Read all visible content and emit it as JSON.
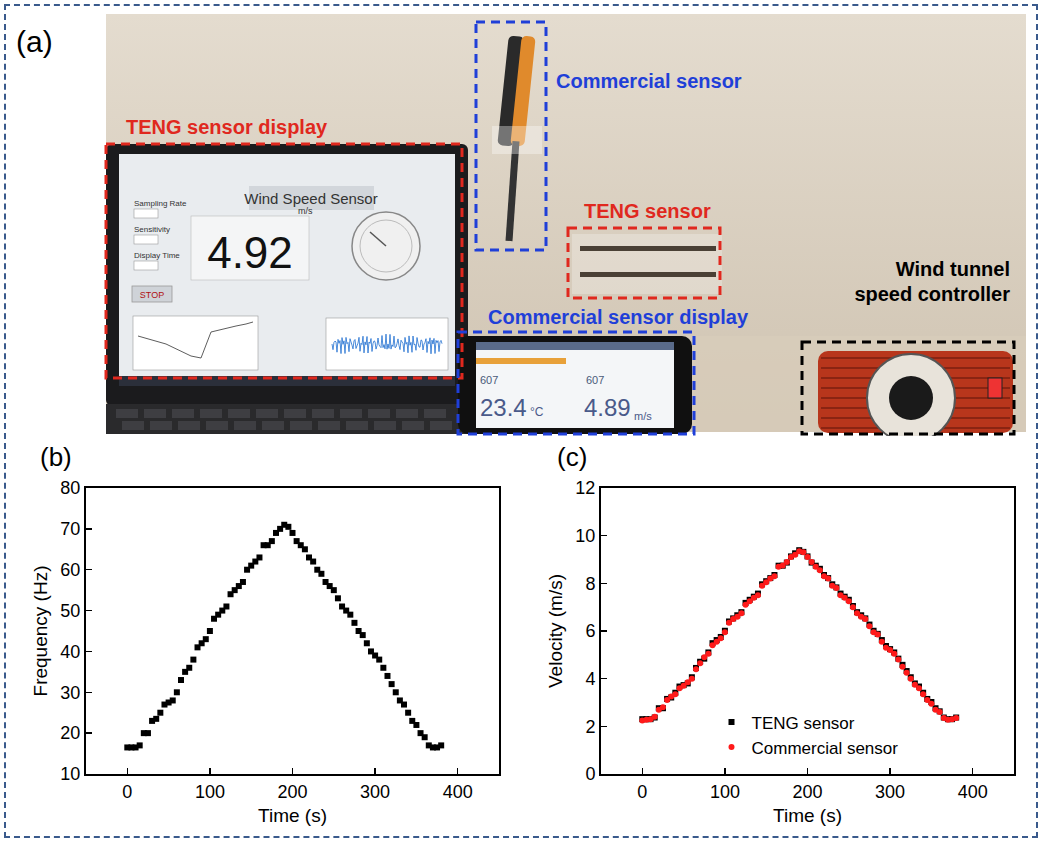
{
  "panel_a": {
    "panel_label": "(a)",
    "boxes": [
      {
        "label": "TENG sensor display",
        "color": "#e0281e"
      },
      {
        "label": "Commercial sensor",
        "color": "#1f3fd8"
      },
      {
        "label": "TENG sensor",
        "color": "#e0281e"
      },
      {
        "label": "Commercial sensor display",
        "color": "#1f3fd8"
      },
      {
        "label": "Wind tunnel speed controller",
        "color": "#000000"
      }
    ],
    "laptop_screen": {
      "title": "Wind Speed Sensor",
      "fields": [
        "Sampling Rate",
        "Sensitivity",
        "Display Time"
      ],
      "reading": 4.92,
      "unit": "m/s",
      "button": "STOP"
    },
    "phone_screen": {
      "counts": [
        607,
        607
      ],
      "temperature": 23.4,
      "temperature_unit": "°C",
      "speed": 4.89,
      "speed_unit": "m/s"
    }
  },
  "chart_data": [
    {
      "type": "scatter",
      "panel_label": "(b)",
      "x_label": "Time (s)",
      "y_label": "Frequency (Hz)",
      "x": [
        0,
        5,
        10,
        15,
        20,
        25,
        30,
        35,
        40,
        45,
        50,
        55,
        60,
        65,
        70,
        75,
        80,
        85,
        90,
        95,
        100,
        105,
        110,
        115,
        120,
        125,
        130,
        135,
        140,
        145,
        150,
        155,
        160,
        165,
        170,
        175,
        180,
        185,
        190,
        195,
        200,
        205,
        210,
        215,
        220,
        225,
        230,
        235,
        240,
        245,
        250,
        255,
        260,
        265,
        270,
        275,
        280,
        285,
        290,
        295,
        300,
        305,
        310,
        315,
        320,
        325,
        330,
        335,
        340,
        345,
        350,
        355,
        360,
        365,
        370,
        375,
        380
      ],
      "values": [
        16.5,
        16.5,
        16.5,
        17,
        20,
        20,
        23,
        23.5,
        25,
        27,
        27.5,
        28,
        30,
        33,
        35,
        36,
        38,
        41,
        42,
        43,
        45,
        48,
        49,
        50,
        51,
        54,
        55,
        56,
        57,
        60,
        61,
        62,
        63,
        66,
        66,
        67,
        69,
        70,
        71,
        70.5,
        69,
        67,
        66,
        65,
        63,
        62,
        60,
        59,
        57,
        56,
        55,
        53,
        51,
        50,
        49,
        47,
        45,
        44,
        42,
        40,
        39,
        38,
        36,
        34,
        32,
        30,
        28,
        27,
        25,
        23,
        22,
        20,
        19,
        17,
        16.5,
        16.5,
        17
      ],
      "color": "#000000",
      "marker": "square",
      "xlim": [
        -50,
        450
      ],
      "xticks": [
        0,
        100,
        200,
        300,
        400
      ],
      "ylim": [
        10,
        80
      ],
      "yticks": [
        10,
        20,
        30,
        40,
        50,
        60,
        70,
        80
      ],
      "grid": false
    },
    {
      "type": "scatter",
      "panel_label": "(c)",
      "x_label": "Time (s)",
      "y_label": "Velocity (m/s)",
      "x": [
        0,
        5,
        10,
        15,
        20,
        25,
        30,
        35,
        40,
        45,
        50,
        55,
        60,
        65,
        70,
        75,
        80,
        85,
        90,
        95,
        100,
        105,
        110,
        115,
        120,
        125,
        130,
        135,
        140,
        145,
        150,
        155,
        160,
        165,
        170,
        175,
        180,
        185,
        190,
        195,
        200,
        205,
        210,
        215,
        220,
        225,
        230,
        235,
        240,
        245,
        250,
        255,
        260,
        265,
        270,
        275,
        280,
        285,
        290,
        295,
        300,
        305,
        310,
        315,
        320,
        325,
        330,
        335,
        340,
        345,
        350,
        355,
        360,
        365,
        370,
        375,
        380
      ],
      "series": [
        {
          "name": "TENG sensor",
          "color": "#000000",
          "marker": "square",
          "values": [
            2.3,
            2.3,
            2.3,
            2.37,
            2.76,
            2.76,
            3.15,
            3.21,
            3.41,
            3.67,
            3.73,
            3.8,
            4.06,
            4.45,
            4.71,
            4.84,
            5.1,
            5.49,
            5.62,
            5.75,
            6.01,
            6.4,
            6.53,
            6.66,
            6.79,
            7.18,
            7.31,
            7.44,
            7.57,
            7.96,
            8.09,
            8.22,
            8.35,
            8.74,
            8.74,
            8.87,
            9.13,
            9.26,
            9.39,
            9.32,
            9.13,
            8.87,
            8.74,
            8.61,
            8.35,
            8.22,
            7.96,
            7.83,
            7.57,
            7.44,
            7.31,
            7.05,
            6.79,
            6.66,
            6.53,
            6.27,
            6.01,
            5.88,
            5.62,
            5.37,
            5.24,
            5.1,
            4.84,
            4.58,
            4.32,
            4.06,
            3.8,
            3.67,
            3.41,
            3.15,
            3.02,
            2.76,
            2.63,
            2.37,
            2.3,
            2.3,
            2.37
          ]
        },
        {
          "name": "Commercial sensor",
          "color": "#ff1a1a",
          "marker": "circle",
          "values": [
            2.25,
            2.28,
            2.3,
            2.4,
            2.7,
            2.8,
            3.1,
            3.25,
            3.35,
            3.6,
            3.7,
            3.85,
            4.0,
            4.4,
            4.65,
            4.9,
            5.05,
            5.4,
            5.55,
            5.7,
            5.95,
            6.35,
            6.5,
            6.6,
            6.75,
            7.1,
            7.25,
            7.4,
            7.5,
            7.9,
            8.05,
            8.2,
            8.3,
            8.7,
            8.75,
            8.9,
            9.1,
            9.2,
            9.35,
            9.3,
            9.1,
            8.9,
            8.7,
            8.55,
            8.3,
            8.2,
            7.9,
            7.8,
            7.5,
            7.4,
            7.25,
            7.0,
            6.75,
            6.6,
            6.5,
            6.2,
            5.95,
            5.85,
            5.55,
            5.3,
            5.2,
            5.05,
            4.8,
            4.5,
            4.25,
            4.0,
            3.75,
            3.6,
            3.35,
            3.1,
            2.95,
            2.7,
            2.6,
            2.35,
            2.28,
            2.3,
            2.35
          ]
        }
      ],
      "legend": "bottom",
      "xlim": [
        -50,
        450
      ],
      "xticks": [
        0,
        100,
        200,
        300,
        400
      ],
      "ylim": [
        0,
        12
      ],
      "yticks": [
        0,
        2,
        4,
        6,
        8,
        10,
        12
      ],
      "grid": false
    }
  ]
}
